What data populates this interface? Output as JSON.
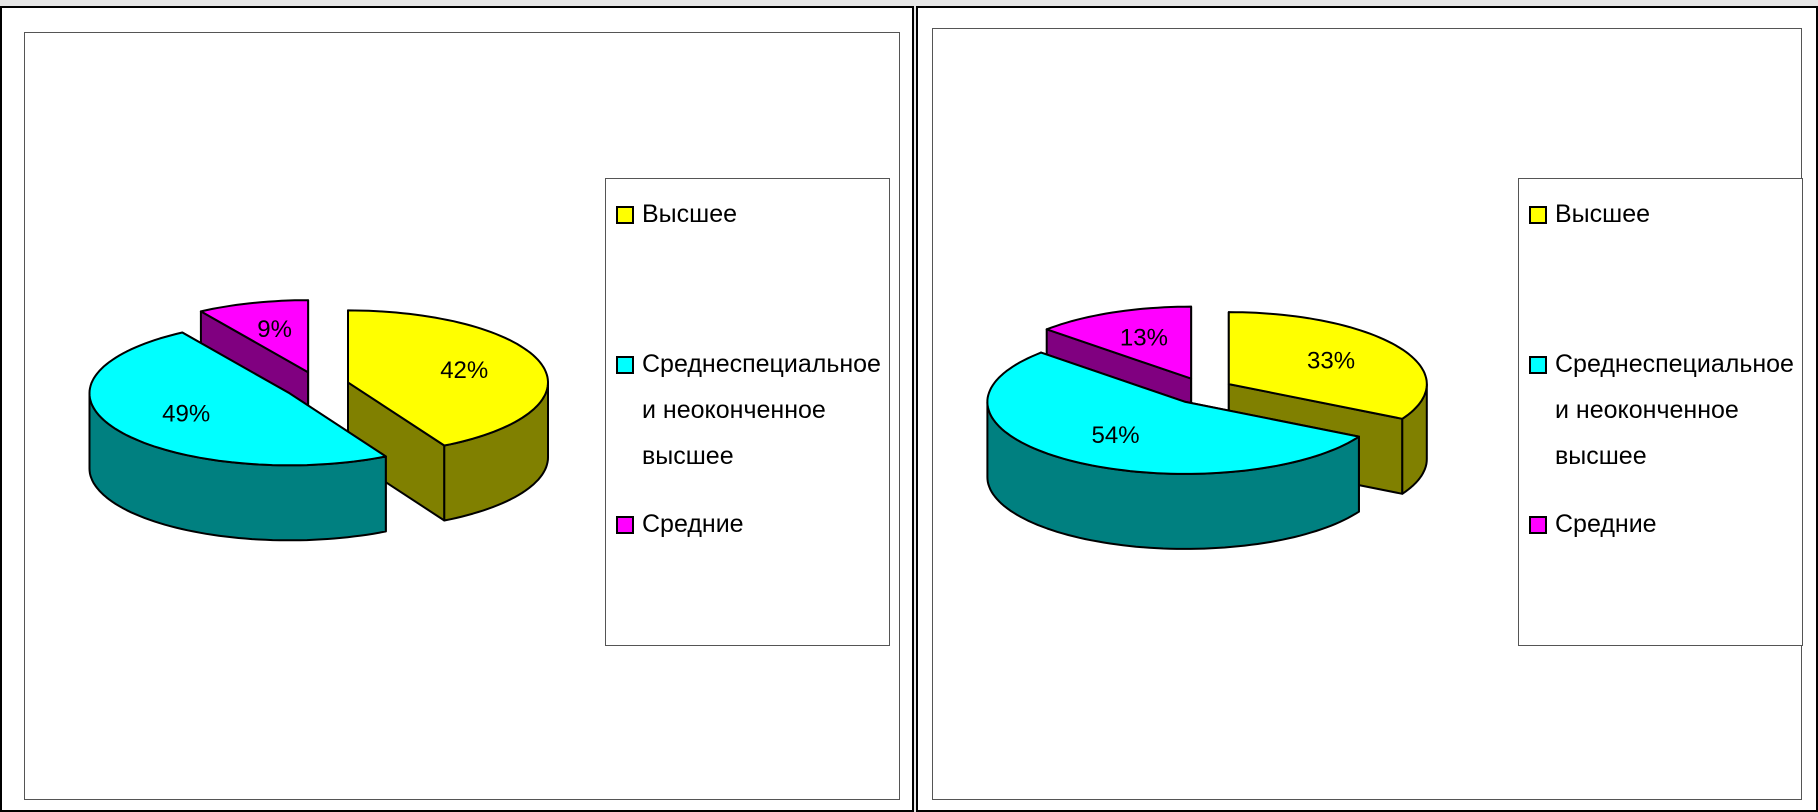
{
  "chart_data": [
    {
      "type": "pie",
      "categories": [
        "Высшее",
        "Среднеспециальное и неоконченное высшее",
        "Средние"
      ],
      "values": [
        42,
        49,
        9
      ],
      "value_labels": [
        "42%",
        "49%",
        "9%"
      ],
      "colors": [
        "#ffff00",
        "#00ffff",
        "#ff00ff"
      ]
    },
    {
      "type": "pie",
      "categories": [
        "Высшее",
        "Среднеспециальное и неоконченное высшее",
        "Средние"
      ],
      "values": [
        33,
        54,
        13
      ],
      "value_labels": [
        "33%",
        "54%",
        "13%"
      ],
      "colors": [
        "#ffff00",
        "#00ffff",
        "#ff00ff"
      ]
    }
  ]
}
